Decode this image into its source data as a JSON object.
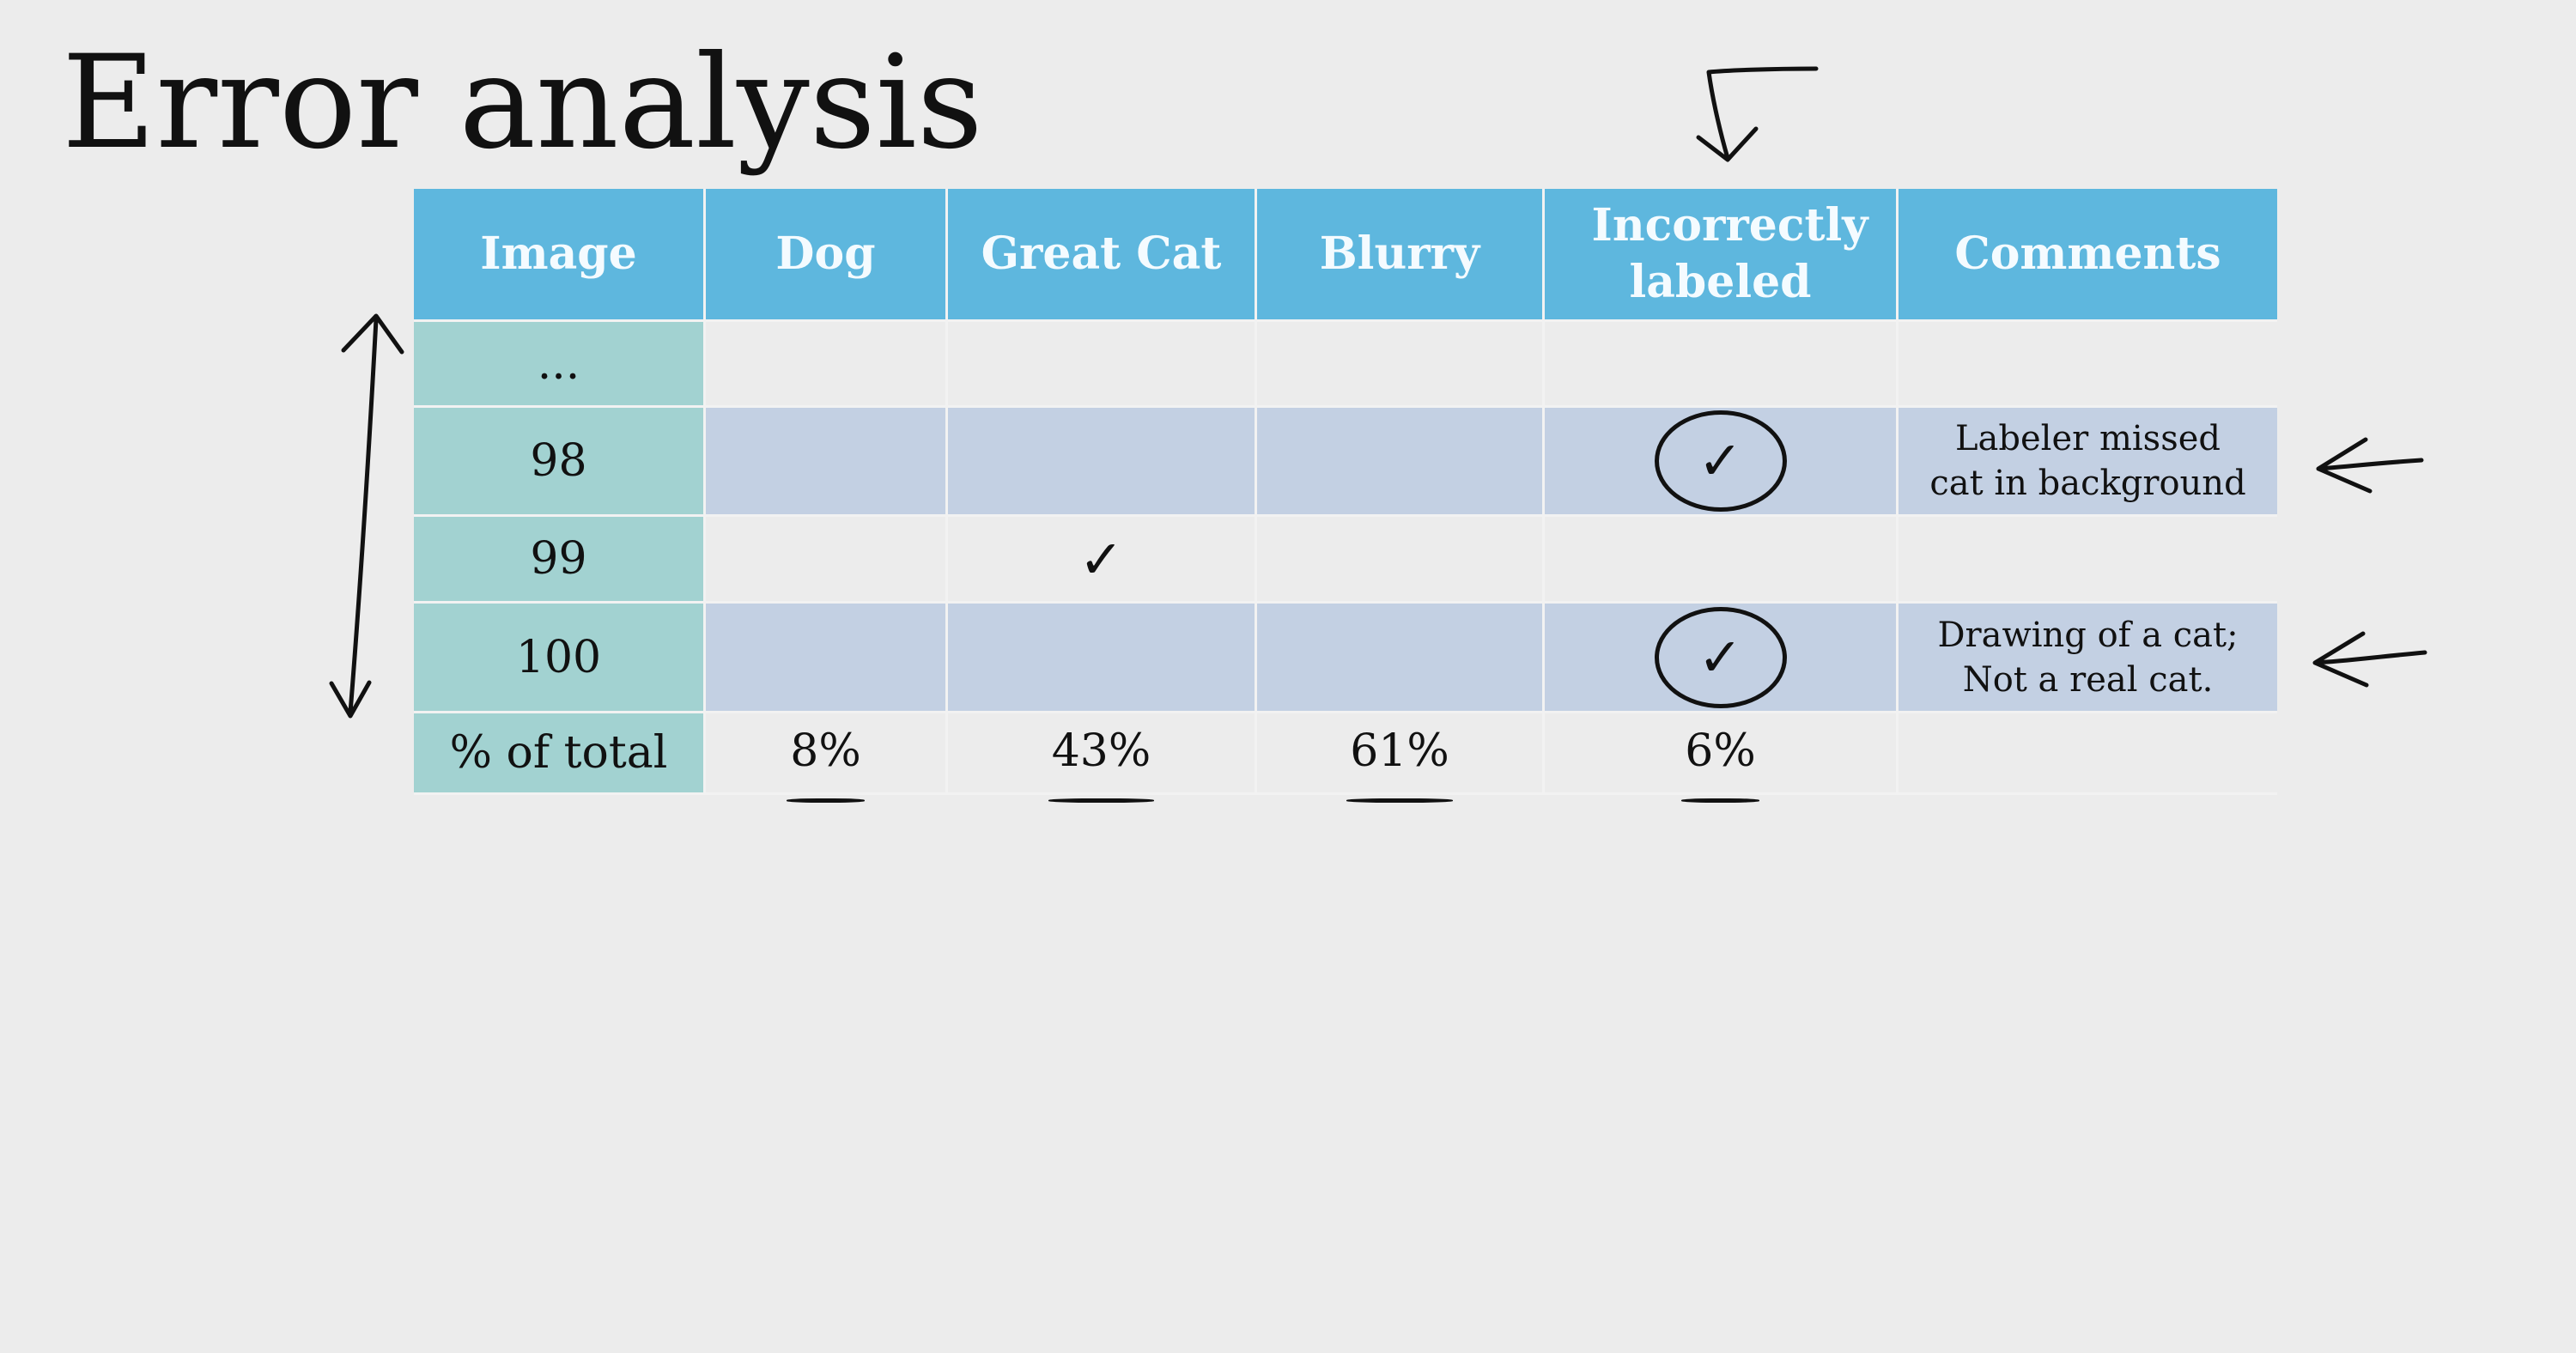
{
  "title": "Error analysis",
  "table": {
    "headers": [
      "Image",
      "Dog",
      "Great Cat",
      "Blurry",
      "Incorrectly labeled",
      "Comments"
    ],
    "rows": [
      {
        "image": "...",
        "dog": "",
        "great_cat": "",
        "blurry": "",
        "incorrectly_labeled": "",
        "comments": ""
      },
      {
        "image": "98",
        "dog": "",
        "great_cat": "",
        "blurry": "",
        "incorrectly_labeled": "✓",
        "comments": "Labeler missed cat in background"
      },
      {
        "image": "99",
        "dog": "",
        "great_cat": "✓",
        "blurry": "",
        "incorrectly_labeled": "",
        "comments": ""
      },
      {
        "image": "100",
        "dog": "",
        "great_cat": "",
        "blurry": "",
        "incorrectly_labeled": "✓",
        "comments": "Drawing of a cat; Not a real cat."
      }
    ],
    "footer": {
      "label": "% of total",
      "dog": "8%",
      "great_cat": "43%",
      "blurry": "61%",
      "incorrectly_labeled": "6%"
    }
  },
  "colors": {
    "header": "#5eb7de",
    "row_header": "#a2d2d1",
    "shaded_row": "#c3d0e3",
    "background": "#ececec"
  }
}
